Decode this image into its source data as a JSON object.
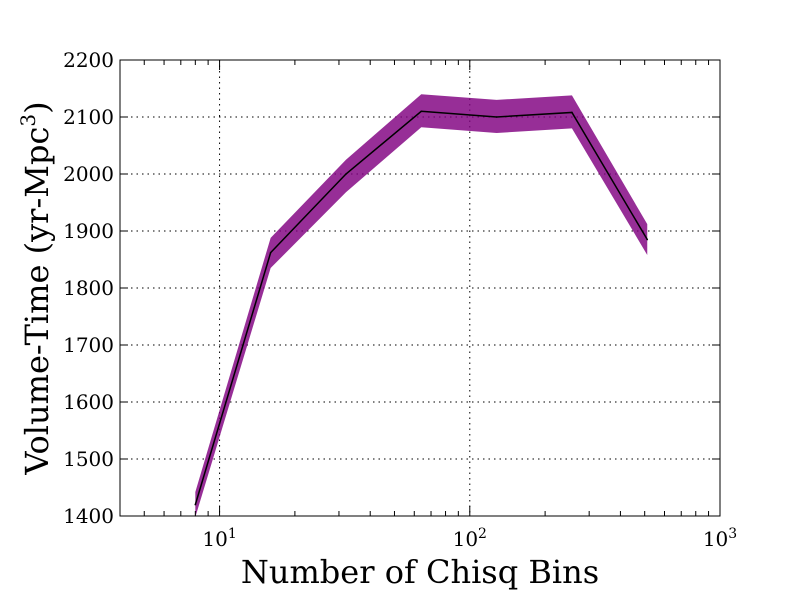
{
  "chart_data": {
    "type": "line",
    "title": "",
    "xlabel": "Number of Chisq Bins",
    "ylabel_main": "Volume-Time (yr-Mpc",
    "ylabel_sup": "3",
    "ylabel_close": ")",
    "x_scale": "log",
    "xlim": [
      4,
      1000
    ],
    "ylim": [
      1400,
      2200
    ],
    "x_ticks": [
      {
        "value": 10,
        "base": "10",
        "exp": "1"
      },
      {
        "value": 100,
        "base": "10",
        "exp": "2"
      },
      {
        "value": 1000,
        "base": "10",
        "exp": "3"
      }
    ],
    "y_ticks": [
      {
        "value": 1400,
        "label": "1400"
      },
      {
        "value": 1500,
        "label": "1500"
      },
      {
        "value": 1600,
        "label": "1600"
      },
      {
        "value": 1700,
        "label": "1700"
      },
      {
        "value": 1800,
        "label": "1800"
      },
      {
        "value": 1900,
        "label": "1900"
      },
      {
        "value": 2000,
        "label": "2000"
      },
      {
        "value": 2100,
        "label": "2100"
      },
      {
        "value": 2200,
        "label": "2200"
      }
    ],
    "grid": true,
    "series": [
      {
        "x": [
          8,
          16,
          32,
          64,
          128,
          256,
          512
        ],
        "y": [
          1420,
          1862,
          2000,
          2110,
          2100,
          2108,
          1885
        ],
        "upper": [
          1442,
          1888,
          2025,
          2140,
          2130,
          2138,
          1912
        ],
        "lower": [
          1398,
          1835,
          1968,
          2082,
          2072,
          2080,
          1858
        ],
        "line_color": "#000000",
        "band_color": "#800080",
        "band_opacity": 0.82
      }
    ]
  }
}
